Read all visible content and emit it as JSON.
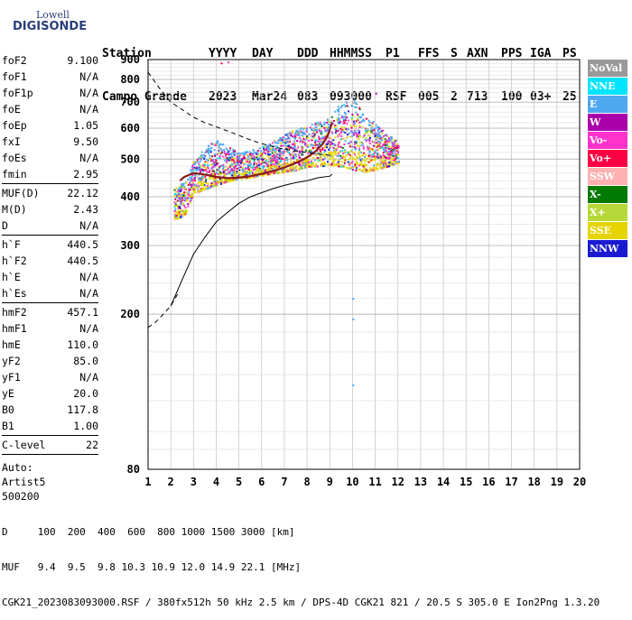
{
  "logo": {
    "line1": "Lowell",
    "line2": "DIGISONDE"
  },
  "header": {
    "labels": [
      "Station",
      "YYYY",
      "DAY",
      "DDD",
      "HHMMSS",
      "P1",
      "FFS",
      "S",
      "AXN",
      "PPS",
      "IGA",
      "PS"
    ],
    "values": [
      "Campo Grande",
      "2023",
      "Mar24",
      "083",
      "093000",
      "RSF",
      "005",
      "2",
      "713",
      "100",
      "03+",
      "25"
    ]
  },
  "parameters_group1": [
    {
      "name": "foF2",
      "value": "9.100"
    },
    {
      "name": "foF1",
      "value": "N/A"
    },
    {
      "name": "foF1p",
      "value": "N/A"
    },
    {
      "name": "foE",
      "value": "N/A"
    },
    {
      "name": "foEp",
      "value": "1.05"
    },
    {
      "name": "fxI",
      "value": "9.50"
    },
    {
      "name": "foEs",
      "value": "N/A"
    },
    {
      "name": "fmin",
      "value": "2.95"
    }
  ],
  "parameters_group2": [
    {
      "name": "MUF(D)",
      "value": "22.12"
    },
    {
      "name": "M(D)",
      "value": "2.43"
    },
    {
      "name": "D",
      "value": "N/A"
    }
  ],
  "parameters_group3": [
    {
      "name": "h`F",
      "value": "440.5"
    },
    {
      "name": "h`F2",
      "value": "440.5"
    },
    {
      "name": "h`E",
      "value": "N/A"
    },
    {
      "name": "h`Es",
      "value": "N/A"
    }
  ],
  "parameters_group4": [
    {
      "name": "hmF2",
      "value": "457.1"
    },
    {
      "name": "hmF1",
      "value": "N/A"
    },
    {
      "name": "hmE",
      "value": "110.0"
    },
    {
      "name": "yF2",
      "value": "85.0"
    },
    {
      "name": "yF1",
      "value": "N/A"
    },
    {
      "name": "yE",
      "value": "20.0"
    },
    {
      "name": "B0",
      "value": "117.8"
    },
    {
      "name": "B1",
      "value": "1.00"
    }
  ],
  "parameters_group5": [
    {
      "name": "C-level",
      "value": "22"
    }
  ],
  "autoscaling": {
    "line1": "Auto:",
    "line2": "Artist5",
    "line3": "500200"
  },
  "legend": [
    {
      "label": "NoVal",
      "color": "#999999",
      "text_color": "#ffffff"
    },
    {
      "label": "NNE",
      "color": "#00e5ff",
      "text_color": "#ffffff"
    },
    {
      "label": "E",
      "color": "#4fa8f0",
      "text_color": "#ffffff"
    },
    {
      "label": "W",
      "color": "#aa00aa",
      "text_color": "#ffffff"
    },
    {
      "label": "Vo-",
      "color": "#ff33cc",
      "text_color": "#ffffff"
    },
    {
      "label": "Vo+",
      "color": "#ff0044",
      "text_color": "#ffffff"
    },
    {
      "label": "SSW",
      "color": "#ffb0b0",
      "text_color": "#ffffff"
    },
    {
      "label": "X-",
      "color": "#007a00",
      "text_color": "#ffffff"
    },
    {
      "label": "X+",
      "color": "#b8d83a",
      "text_color": "#ffffff"
    },
    {
      "label": "SSE",
      "color": "#e6d400",
      "text_color": "#ffffff"
    },
    {
      "label": "NNW",
      "color": "#1a1ad0",
      "text_color": "#ffffff"
    }
  ],
  "footer": {
    "row_D": {
      "label": "D",
      "values": [
        "100",
        "200",
        "400",
        "600",
        "800",
        "1000",
        "1500",
        "3000"
      ],
      "unit": "[km]"
    },
    "row_MUF": {
      "label": "MUF",
      "values": [
        "9.4",
        "9.5",
        "9.8",
        "10.3",
        "10.9",
        "12.0",
        "14.9",
        "22.1"
      ],
      "unit": "[MHz]"
    },
    "info": "CGK21_2023083093000.RSF / 380fx512h 50 kHz 2.5 km / DPS-4D CGK21 821 / 20.5 S 305.0 E Ion2Png 1.3.20"
  },
  "chart_data": {
    "type": "scatter",
    "xlim": [
      1,
      20
    ],
    "ylim": [
      80,
      900
    ],
    "x_ticks": [
      "1",
      "2",
      "3",
      "4",
      "5",
      "6",
      "7",
      "8",
      "9",
      "10",
      "11",
      "12",
      "13",
      "14",
      "15",
      "16",
      "17",
      "18",
      "19",
      "20"
    ],
    "y_ticks": [
      "80",
      "200",
      "300",
      "400",
      "500",
      "600",
      "700",
      "800",
      "900"
    ],
    "y_scale": "log",
    "grid": true,
    "trace_bounds": {
      "x": [
        2.1,
        2.6,
        3.0,
        3.5,
        4.0,
        4.5,
        5.0,
        5.5,
        6.0,
        6.5,
        7.0,
        7.5,
        8.0,
        8.5,
        9.0,
        9.5,
        10.0,
        10.5,
        11.0,
        11.5,
        12.0
      ],
      "y_low": [
        350,
        360,
        410,
        420,
        430,
        440,
        445,
        450,
        455,
        460,
        465,
        470,
        480,
        480,
        485,
        480,
        470,
        465,
        470,
        480,
        490
      ],
      "y_high": [
        420,
        440,
        500,
        540,
        560,
        540,
        520,
        530,
        540,
        560,
        580,
        600,
        610,
        630,
        650,
        700,
        720,
        650,
        620,
        580,
        560
      ]
    },
    "ordinary_trace": {
      "x": [
        2.4,
        2.6,
        2.8,
        3.0,
        3.3,
        3.6,
        4.0,
        4.5,
        5.0,
        5.5,
        6.0,
        6.5,
        7.0,
        7.5,
        8.0,
        8.4,
        8.7,
        8.9,
        9.0,
        9.1
      ],
      "y": [
        440,
        450,
        455,
        460,
        458,
        455,
        450,
        447,
        448,
        452,
        458,
        466,
        476,
        488,
        505,
        525,
        548,
        572,
        595,
        620
      ]
    },
    "profile_solid": {
      "x": [
        2.0,
        2.5,
        3.0,
        3.5,
        4.0,
        4.5,
        5.0,
        5.5,
        6.0,
        6.5,
        7.0,
        7.5,
        8.0,
        8.5,
        9.0,
        9.1
      ],
      "y": [
        210,
        245,
        285,
        315,
        345,
        365,
        385,
        400,
        410,
        420,
        428,
        435,
        440,
        448,
        452,
        457
      ]
    },
    "profile_dashed_upper": {
      "x": [
        1.0,
        1.5,
        2.0,
        2.5,
        3.0,
        3.5,
        4.0,
        4.5,
        5.0,
        5.5,
        6.0,
        6.5,
        7.0,
        7.5,
        8.0,
        8.5,
        9.1
      ],
      "y": [
        835,
        760,
        700,
        670,
        640,
        620,
        605,
        590,
        575,
        560,
        548,
        538,
        530,
        524,
        520,
        515,
        510
      ]
    },
    "profile_dashed_lower": {
      "x": [
        1.0,
        1.3,
        1.6,
        2.0,
        2.3
      ],
      "y": [
        185,
        190,
        198,
        210,
        225
      ]
    },
    "isolated_points": [
      {
        "x": 10.0,
        "y": 220,
        "color": "#4fa8f0"
      },
      {
        "x": 10.0,
        "y": 195,
        "color": "#4fa8f0"
      },
      {
        "x": 10.0,
        "y": 132,
        "color": "#4fa8f0"
      },
      {
        "x": 11.0,
        "y": 740,
        "color": "#aa00aa"
      },
      {
        "x": 4.5,
        "y": 890,
        "color": "#ff33cc"
      },
      {
        "x": 4.2,
        "y": 885,
        "color": "#ff0044"
      }
    ]
  }
}
